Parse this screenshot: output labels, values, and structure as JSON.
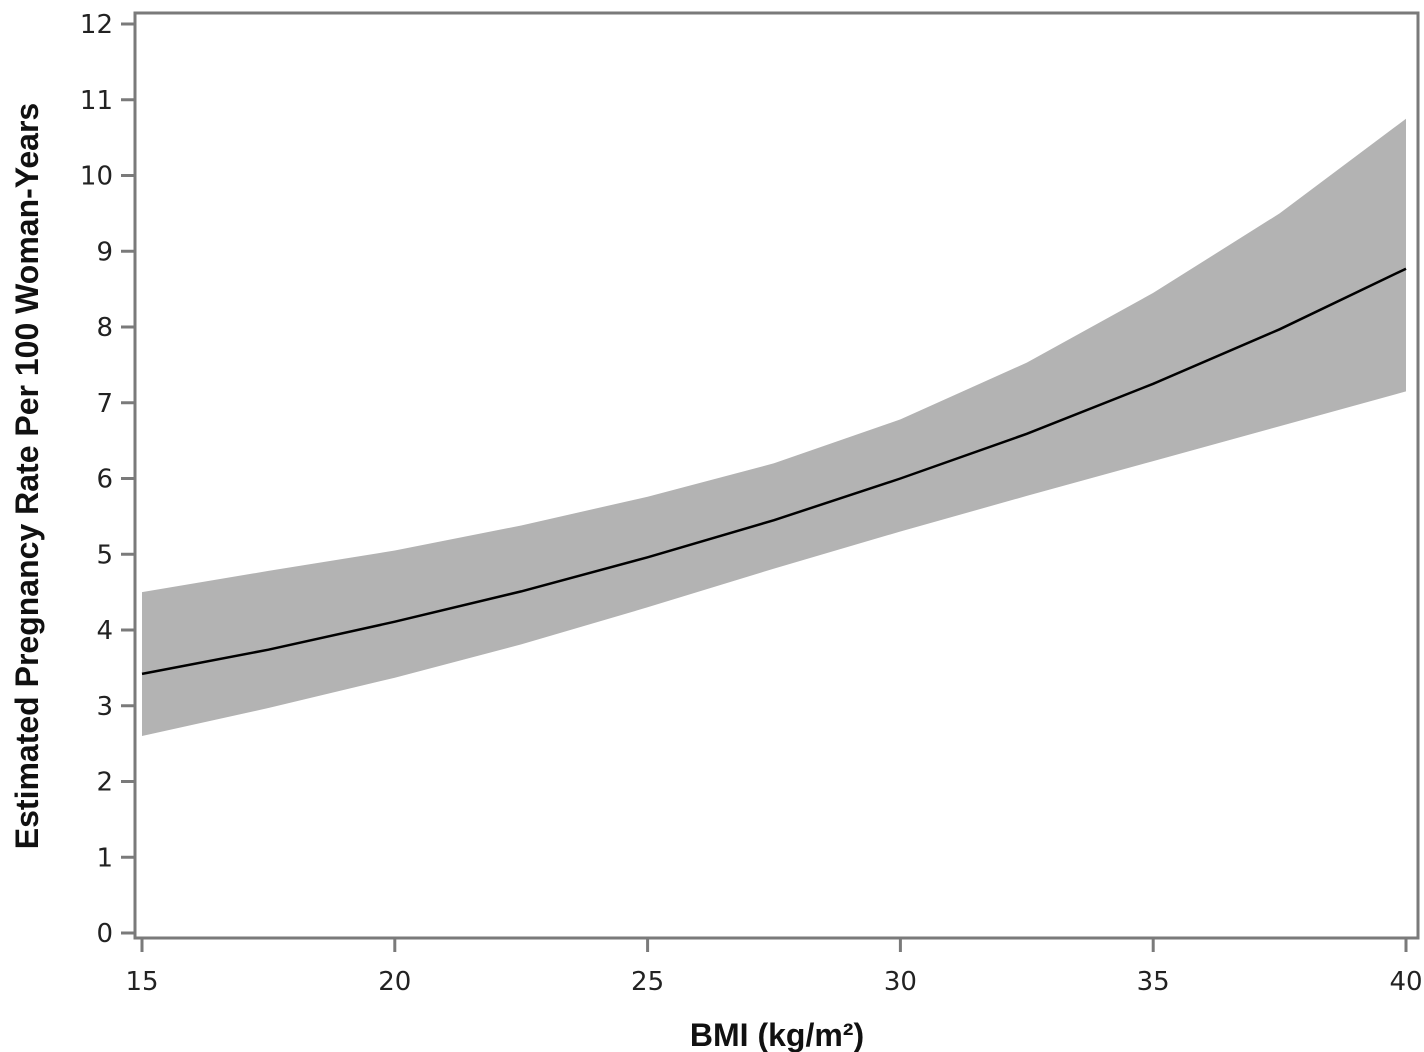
{
  "chart_data": {
    "type": "line",
    "title": "",
    "xlabel": "BMI (kg/m²)",
    "ylabel": "Estimated Pregnancy Rate Per 100 Woman-Years",
    "xlim": [
      15,
      40
    ],
    "ylim": [
      0,
      12
    ],
    "x_ticks": [
      "15",
      "20",
      "25",
      "30",
      "35",
      "40"
    ],
    "y_ticks": [
      "0",
      "1",
      "2",
      "3",
      "4",
      "5",
      "6",
      "7",
      "8",
      "9",
      "10",
      "11",
      "12"
    ],
    "grid": false,
    "legend": "none",
    "x": [
      15,
      17.5,
      20,
      22.5,
      25,
      27.5,
      30,
      32.5,
      35,
      37.5,
      40
    ],
    "series": [
      {
        "values": [
          3.42,
          3.74,
          4.11,
          4.51,
          4.96,
          5.45,
          6.0,
          6.59,
          7.25,
          7.97,
          8.77
        ]
      }
    ],
    "confidence_band": {
      "lower": [
        2.6,
        2.97,
        3.37,
        3.81,
        4.3,
        4.81,
        5.3,
        5.77,
        6.23,
        6.69,
        7.15
      ],
      "upper": [
        4.5,
        4.78,
        5.05,
        5.38,
        5.76,
        6.2,
        6.78,
        7.53,
        8.45,
        9.5,
        10.75
      ]
    },
    "colors": {
      "line": "#000000",
      "band": "#b3b3b3",
      "axis": "#7a7a7a"
    }
  }
}
